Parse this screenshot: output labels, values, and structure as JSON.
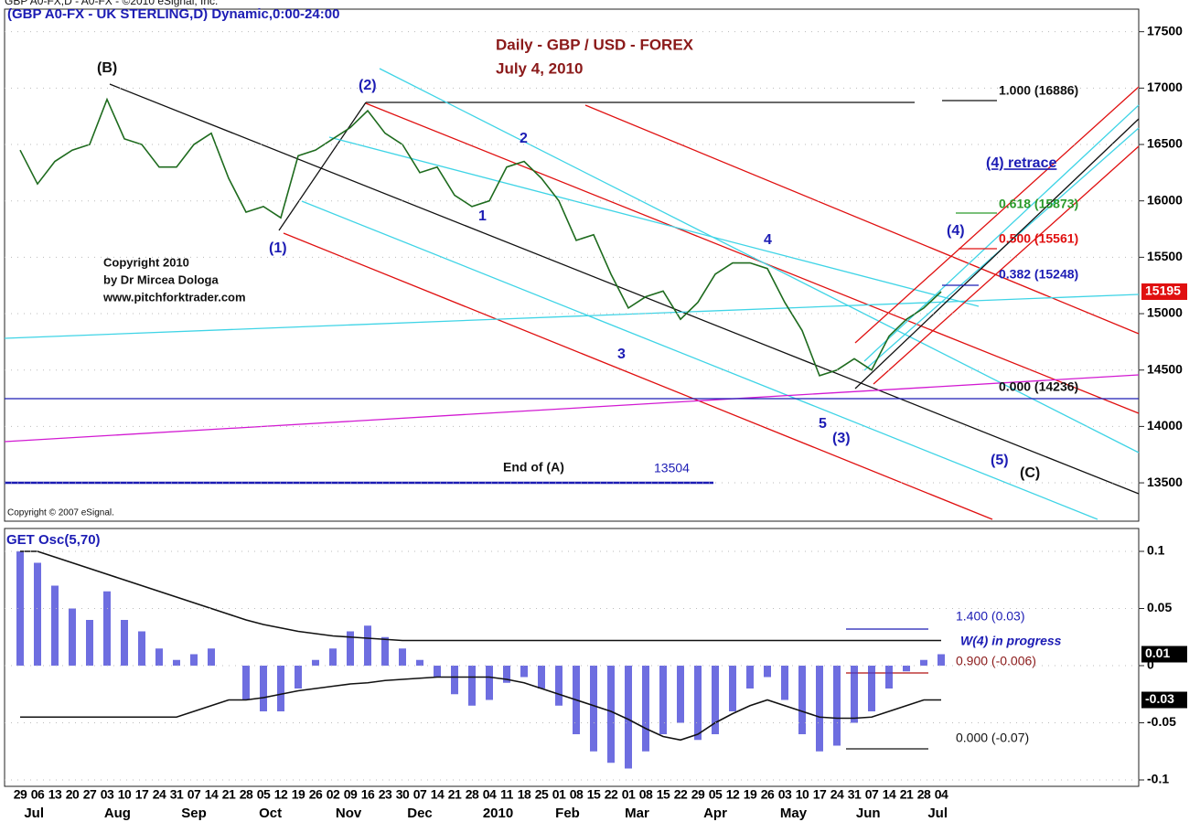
{
  "header": {
    "top": "GBP A0-FX,D - A0-FX - ©2010 eSignal, Inc.",
    "symbol": "(GBP A0-FX - UK STERLING,D) Dynamic,0:00-24:00",
    "copyright_esignal": "Copyright © 2007 eSignal."
  },
  "chart_data": [
    {
      "type": "line",
      "title": "Daily - GBP / USD - FOREX",
      "subtitle": "July 4, 2010",
      "color": "#1e6b1e",
      "values": [
        16450,
        16150,
        16350,
        16450,
        16500,
        16900,
        16550,
        16500,
        16300,
        16300,
        16500,
        16600,
        16200,
        15900,
        15950,
        15850,
        16400,
        16450,
        16550,
        16650,
        16800,
        16600,
        16500,
        16250,
        16300,
        16050,
        15950,
        16000,
        16300,
        16350,
        16200,
        16000,
        15650,
        15700,
        15350,
        15050,
        15150,
        15200,
        14950,
        15100,
        15350,
        15450,
        15450,
        15400,
        15100,
        14850,
        14450,
        14500,
        14600,
        14500,
        14800,
        14950,
        15050,
        15195
      ],
      "ylim": [
        13160,
        17700
      ],
      "yticks": [
        13500,
        14000,
        14500,
        15000,
        15500,
        16000,
        16500,
        17000,
        17500
      ]
    },
    {
      "type": "bar",
      "title": "GET Osc(5,70)",
      "color": "#3d3dd6",
      "values": [
        0.1,
        0.09,
        0.07,
        0.05,
        0.04,
        0.065,
        0.04,
        0.03,
        0.015,
        0.005,
        0.01,
        0.015,
        0,
        -0.03,
        -0.04,
        -0.04,
        -0.02,
        0.005,
        0.015,
        0.03,
        0.035,
        0.025,
        0.015,
        0.005,
        -0.01,
        -0.025,
        -0.035,
        -0.03,
        -0.015,
        -0.01,
        -0.02,
        -0.035,
        -0.06,
        -0.075,
        -0.085,
        -0.09,
        -0.075,
        -0.06,
        -0.05,
        -0.065,
        -0.06,
        -0.04,
        -0.02,
        -0.01,
        -0.03,
        -0.06,
        -0.075,
        -0.07,
        -0.05,
        -0.04,
        -0.02,
        -0.005,
        0.005,
        0.01
      ],
      "upper_band": [
        0.1,
        0.1,
        0.095,
        0.09,
        0.085,
        0.08,
        0.075,
        0.07,
        0.065,
        0.06,
        0.055,
        0.05,
        0.045,
        0.04,
        0.036,
        0.033,
        0.03,
        0.028,
        0.026,
        0.025,
        0.024,
        0.023,
        0.022,
        0.022,
        0.022,
        0.022,
        0.022,
        0.022,
        0.022,
        0.022,
        0.022,
        0.022,
        0.022,
        0.022,
        0.022,
        0.022,
        0.022,
        0.022,
        0.022,
        0.022,
        0.022,
        0.022,
        0.022,
        0.022,
        0.022,
        0.022,
        0.022,
        0.022,
        0.022,
        0.022,
        0.022,
        0.022,
        0.022,
        0.022
      ],
      "lower_band": [
        -0.045,
        -0.045,
        -0.045,
        -0.045,
        -0.045,
        -0.045,
        -0.045,
        -0.045,
        -0.045,
        -0.045,
        -0.04,
        -0.035,
        -0.03,
        -0.03,
        -0.028,
        -0.025,
        -0.022,
        -0.02,
        -0.018,
        -0.016,
        -0.015,
        -0.013,
        -0.012,
        -0.011,
        -0.01,
        -0.01,
        -0.01,
        -0.01,
        -0.012,
        -0.015,
        -0.02,
        -0.025,
        -0.03,
        -0.035,
        -0.04,
        -0.047,
        -0.055,
        -0.062,
        -0.065,
        -0.06,
        -0.05,
        -0.042,
        -0.035,
        -0.03,
        -0.035,
        -0.04,
        -0.045,
        -0.046,
        -0.046,
        -0.045,
        -0.04,
        -0.035,
        -0.03,
        -0.03
      ],
      "ylim": [
        -0.1056,
        0.12
      ],
      "yticks": [
        0.1,
        0.05,
        0,
        -0.05,
        -0.1
      ]
    }
  ],
  "x_axis": {
    "days": [
      "29",
      "06",
      "13",
      "20",
      "27",
      "03",
      "10",
      "17",
      "24",
      "31",
      "07",
      "14",
      "21",
      "28",
      "05",
      "12",
      "19",
      "26",
      "02",
      "09",
      "16",
      "23",
      "30",
      "07",
      "14",
      "21",
      "28",
      "04",
      "11",
      "18",
      "25",
      "01",
      "08",
      "15",
      "22",
      "01",
      "08",
      "15",
      "22",
      "29",
      "05",
      "12",
      "19",
      "26",
      "03",
      "10",
      "17",
      "24",
      "31",
      "07",
      "14",
      "21",
      "28",
      "04"
    ],
    "months": [
      "Jul",
      "Aug",
      "Sep",
      "Oct",
      "Nov",
      "Dec",
      "2010",
      "Feb",
      "Mar",
      "Apr",
      "May",
      "Jun",
      "Jul"
    ]
  },
  "annotations": {
    "b": "(B)",
    "w2": "(2)",
    "w1": "(1)",
    "s2": "2",
    "s1": "1",
    "s4": "4",
    "s3": "3",
    "s5": "5",
    "w3": "(3)",
    "w4": "(4)",
    "w5": "(5)",
    "c": "(C)",
    "copy1": "Copyright 2010",
    "copy2": "by Dr Mircea Dologa",
    "copy3": "www.pitchforktrader.com",
    "fib1000": "1.000 (16886)",
    "retrace": "(4) retrace",
    "fib618": "0.618 (15873)",
    "fib500": "0.500 (15561)",
    "fib382": "0.382 (15248)",
    "fib000": "0.000 (14236)",
    "end_a": "End of (A)",
    "end_a_value": "13504",
    "osc1400": "1.400 (0.03)",
    "osc_progress": "W(4)  in progress",
    "osc900": "0.900 (-0.006)",
    "osc000": "0.000 (-0.07)"
  }
}
